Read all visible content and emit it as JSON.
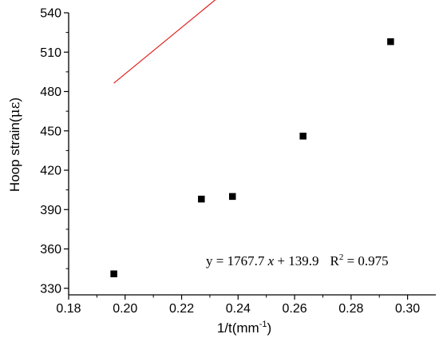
{
  "chart_data": {
    "type": "scatter",
    "xlabel": {
      "base": "1/t(mm",
      "sup": "-1",
      "end": ")"
    },
    "ylabel": {
      "base": "Hoop strain(",
      "unit": "με",
      "end": ")"
    },
    "xlim": [
      0.18,
      0.31
    ],
    "ylim": [
      325,
      540
    ],
    "x_ticks": [
      0.18,
      0.2,
      0.22,
      0.24,
      0.26,
      0.28,
      0.3
    ],
    "x_tick_labels": [
      "0.18",
      "0.20",
      "0.22",
      "0.24",
      "0.26",
      "0.28",
      "0.30"
    ],
    "y_ticks": [
      330,
      360,
      390,
      420,
      450,
      480,
      510,
      540
    ],
    "y_tick_labels": [
      "330",
      "360",
      "390",
      "420",
      "450",
      "480",
      "510",
      "540"
    ],
    "grid": false,
    "points": [
      {
        "x": 0.196,
        "y": 341
      },
      {
        "x": 0.227,
        "y": 398
      },
      {
        "x": 0.238,
        "y": 400
      },
      {
        "x": 0.263,
        "y": 446
      },
      {
        "x": 0.294,
        "y": 518
      }
    ],
    "fit": {
      "slope": 1767.7,
      "intercept": 139.9,
      "x_range": [
        0.196,
        0.294
      ]
    },
    "annotation": {
      "eq_prefix": "y = 1767.7 ",
      "eq_var": "x",
      "eq_suffix": " + 139.9",
      "r2_base": "R",
      "r2_sup": "2",
      "r2_value": " = 0.975"
    },
    "colors": {
      "points": "#000000",
      "fit_line": "#e0201b",
      "axes": "#000000"
    }
  }
}
